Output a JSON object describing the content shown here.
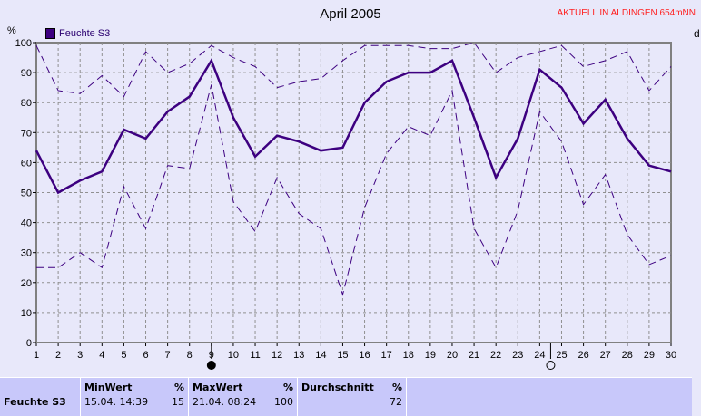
{
  "chart_data": {
    "type": "line",
    "title": "April 2005",
    "annotation": "AKTUELL IN ALDINGEN 654mNN",
    "ylabel": "%",
    "right_label": "d",
    "ylim": [
      0,
      100
    ],
    "yticks": [
      0,
      10,
      20,
      30,
      40,
      50,
      60,
      70,
      80,
      90,
      100
    ],
    "x": [
      1,
      2,
      3,
      4,
      5,
      6,
      7,
      8,
      9,
      10,
      11,
      12,
      13,
      14,
      15,
      16,
      17,
      18,
      19,
      20,
      21,
      22,
      23,
      24,
      25,
      26,
      27,
      28,
      29,
      30
    ],
    "grid": true,
    "legend_position": "top-left",
    "series": [
      {
        "name": "Feuchte S3",
        "style": "solid",
        "color": "#3d0080",
        "values": [
          64,
          50,
          54,
          57,
          71,
          68,
          77,
          82,
          94,
          75,
          62,
          69,
          67,
          64,
          65,
          80,
          87,
          90,
          90,
          94,
          75,
          55,
          68,
          91,
          85,
          73,
          81,
          68,
          59,
          57
        ]
      },
      {
        "style": "dashed",
        "color": "#3d0080",
        "values": [
          99,
          84,
          83,
          89,
          82,
          97,
          90,
          93,
          99,
          95,
          92,
          85,
          87,
          88,
          94,
          99,
          99,
          99,
          98,
          98,
          100,
          90,
          95,
          97,
          99,
          92,
          94,
          97,
          84,
          92
        ]
      },
      {
        "style": "dashed",
        "color": "#3d0080",
        "values": [
          25,
          25,
          30,
          25,
          52,
          38,
          59,
          58,
          86,
          47,
          37,
          55,
          43,
          38,
          16,
          45,
          63,
          72,
          69,
          84,
          38,
          25,
          44,
          77,
          67,
          46,
          56,
          36,
          26,
          29
        ]
      }
    ],
    "moon_markers": [
      {
        "day": 9,
        "phase": "full"
      },
      {
        "day": 24.5,
        "phase": "new"
      }
    ]
  },
  "stats": {
    "sensor": "Feuchte S3",
    "min": {
      "label": "MinWert",
      "unit": "%",
      "time": "15.04.  14:39",
      "value": "15"
    },
    "max": {
      "label": "MaxWert",
      "unit": "%",
      "time": "21.04.  08:24",
      "value": "100"
    },
    "avg": {
      "label": "Durchschnitt",
      "unit": "%",
      "value": "72"
    }
  }
}
